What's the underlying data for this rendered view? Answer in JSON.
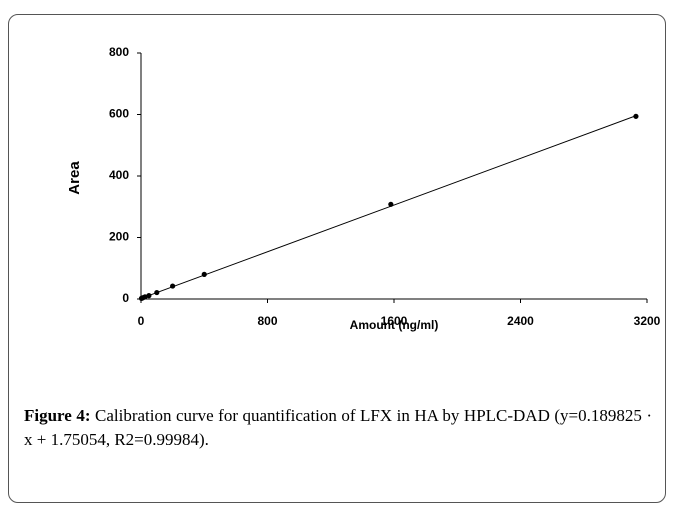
{
  "chart_data": {
    "type": "scatter",
    "x_label": "Amount (ng/ml)",
    "y_label": "Area",
    "x": [
      3,
      12,
      25,
      50,
      100,
      200,
      400,
      1580,
      3130
    ],
    "values": [
      2,
      4,
      7,
      11,
      21,
      42,
      80,
      308,
      594
    ],
    "color": "#000000",
    "trendline": {
      "x": [
        0,
        3130
      ],
      "y": [
        1.75,
        595.9
      ]
    },
    "xlim": [
      0,
      3200
    ],
    "xticks": [
      0,
      800,
      1600,
      2400,
      3200
    ],
    "ylim": [
      0,
      800
    ],
    "yticks": [
      0,
      200,
      400,
      600,
      800
    ],
    "grid": false
  },
  "caption": {
    "label": "Figure 4:",
    "text": "Calibration curve for quantification of LFX in HA by HPLC-DAD (y=0.189825 · x + 1.75054, R2=0.99984)."
  }
}
